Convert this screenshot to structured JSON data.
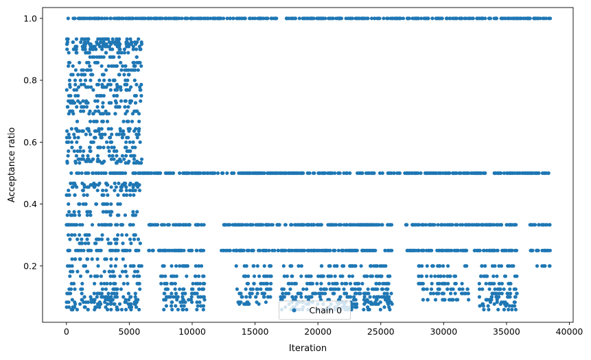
{
  "chart_data": {
    "type": "scatter",
    "xlabel": "Iteration",
    "ylabel": "Acceptance ratio",
    "xlim": [
      -1900,
      40300
    ],
    "ylim": [
      0.018,
      1.035
    ],
    "xticks": [
      0,
      5000,
      10000,
      15000,
      20000,
      25000,
      30000,
      35000,
      40000
    ],
    "xtick_labels": [
      "0",
      "5000",
      "10000",
      "15000",
      "20000",
      "25000",
      "30000",
      "35000",
      "40000"
    ],
    "yticks": [
      0.2,
      0.4,
      0.6,
      0.8,
      1.0
    ],
    "ytick_labels": [
      "0.2",
      "0.4",
      "0.6",
      "0.8",
      "1.0"
    ],
    "legend": {
      "entries": [
        "Chain 0"
      ],
      "placement": "lower center"
    },
    "color": "#1f77b4",
    "grid": false,
    "series": [
      {
        "name": "Chain 0",
        "iterations": [
          0,
          38500
        ],
        "segments": [
          {
            "x": [
              0,
              6000
            ],
            "levels": [
              1.0,
              0.933,
              0.923,
              0.917,
              0.909,
              0.9,
              0.889,
              0.875,
              0.857,
              0.846,
              0.833,
              0.818,
              0.8,
              0.786,
              0.778,
              0.769,
              0.75,
              0.733,
              0.727,
              0.714,
              0.7,
              0.692,
              0.667,
              0.643,
              0.636,
              0.625,
              0.615,
              0.6,
              0.583,
              0.571,
              0.556,
              0.545,
              0.538,
              0.533,
              0.5,
              0.467,
              0.462,
              0.455,
              0.444,
              0.429,
              0.4,
              0.375,
              0.364,
              0.333,
              0.3,
              0.286,
              0.273,
              0.25,
              0.222,
              0.2,
              0.182,
              0.167,
              0.143,
              0.125,
              0.111,
              0.1,
              0.091,
              0.083,
              0.077,
              0.067,
              0.059
            ]
          },
          {
            "x": [
              6000,
              38500
            ],
            "levels": [
              1.0,
              0.5
            ]
          },
          {
            "x": [
              6500,
              11000
            ],
            "levels": [
              0.333,
              0.25
            ]
          },
          {
            "x": [
              12300,
              25900
            ],
            "levels": [
              0.333,
              0.25
            ]
          },
          {
            "x": [
              27000,
              35800
            ],
            "levels": [
              0.333,
              0.25
            ]
          },
          {
            "x": [
              36800,
              38500
            ],
            "levels": [
              0.333,
              0.25,
              0.2
            ]
          },
          {
            "x": [
              7500,
              11000
            ],
            "levels": [
              0.2,
              0.167,
              0.143,
              0.125,
              0.111,
              0.1,
              0.091,
              0.083,
              0.071,
              0.059
            ]
          },
          {
            "x": [
              13500,
              16300
            ],
            "levels": [
              0.2,
              0.167,
              0.143,
              0.125,
              0.111,
              0.1,
              0.083,
              0.077
            ]
          },
          {
            "x": [
              17000,
              25900
            ],
            "levels": [
              0.2,
              0.167,
              0.143,
              0.125,
              0.111,
              0.1,
              0.091,
              0.083,
              0.077,
              0.067,
              0.059
            ]
          },
          {
            "x": [
              28000,
              32000
            ],
            "levels": [
              0.2,
              0.167,
              0.143,
              0.125,
              0.111,
              0.091
            ]
          },
          {
            "x": [
              32800,
              35900
            ],
            "levels": [
              0.2,
              0.167,
              0.143,
              0.125,
              0.111,
              0.1,
              0.091,
              0.083,
              0.077,
              0.071,
              0.059
            ]
          }
        ]
      }
    ]
  }
}
